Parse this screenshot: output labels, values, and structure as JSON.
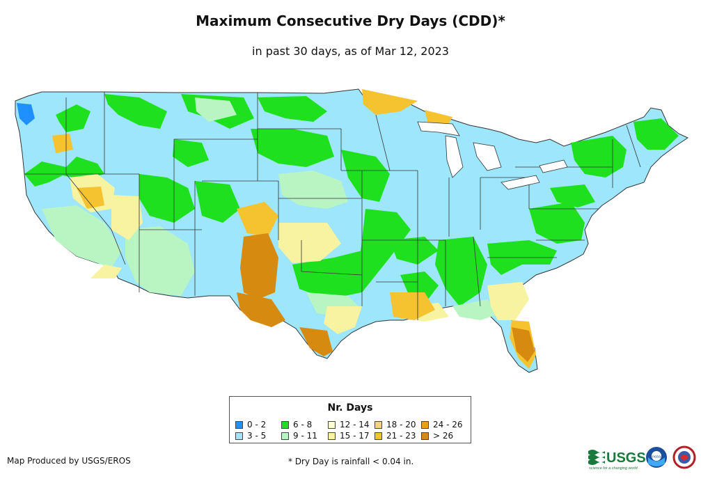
{
  "header": {
    "title": "Maximum Consecutive Dry Days (CDD)*",
    "subtitle": "in past 30 days, as of Mar 12, 2023"
  },
  "legend": {
    "title": "Nr. Days",
    "items": [
      {
        "label": "0 - 2",
        "color": "#1E90FF"
      },
      {
        "label": "3 - 5",
        "color": "#9DE6FB"
      },
      {
        "label": "6 - 8",
        "color": "#1FE01F"
      },
      {
        "label": "9 - 11",
        "color": "#B9F5C3"
      },
      {
        "label": "12 - 14",
        "color": "#FFFFD2"
      },
      {
        "label": "15 - 17",
        "color": "#F8F3A0"
      },
      {
        "label": "18 - 20",
        "color": "#F6D37A"
      },
      {
        "label": "21 - 23",
        "color": "#F5C230"
      },
      {
        "label": "24 - 26",
        "color": "#EAA01A"
      },
      {
        "label": "> 26",
        "color": "#D68A10"
      }
    ]
  },
  "footer": {
    "credit": "Map Produced by USGS/EROS",
    "footnote": "* Dry Day is rainfall < 0.04 in.",
    "usgs_logo_text": "USGS",
    "usgs_tagline": "science for a changing world",
    "noaa_logo_text": "noaa"
  }
}
